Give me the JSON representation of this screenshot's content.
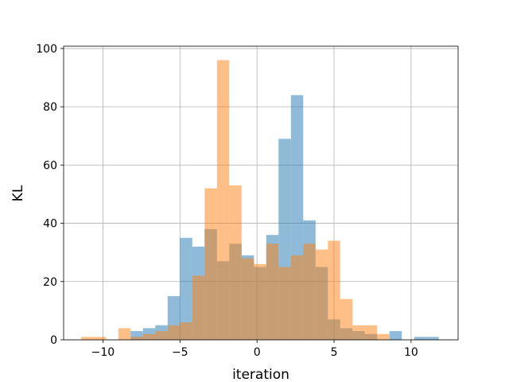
{
  "chart_data": {
    "type": "bar",
    "title": "",
    "xlabel": "iteration",
    "ylabel": "KL",
    "xlim": [
      -12.55,
      13.05
    ],
    "ylim": [
      0,
      100.8
    ],
    "xticks": [
      -10,
      -5,
      0,
      5,
      10
    ],
    "xtick_labels": [
      "−10",
      "−5",
      "0",
      "5",
      "10"
    ],
    "yticks": [
      0,
      20,
      40,
      60,
      80,
      100
    ],
    "ytick_labels": [
      "0",
      "20",
      "40",
      "60",
      "80",
      "100"
    ],
    "grid": true,
    "legend": "none",
    "bar_style": "overlapping semi-transparent histograms",
    "series": [
      {
        "color": "#1f77b4",
        "opacity": 0.5,
        "bins": [
          {
            "x0": -8.2,
            "x1": -7.4,
            "count": 3
          },
          {
            "x0": -7.4,
            "x1": -6.6,
            "count": 4
          },
          {
            "x0": -6.6,
            "x1": -5.8,
            "count": 5
          },
          {
            "x0": -5.8,
            "x1": -5.0,
            "count": 15
          },
          {
            "x0": -5.0,
            "x1": -4.2,
            "count": 35
          },
          {
            "x0": -4.2,
            "x1": -3.4,
            "count": 32
          },
          {
            "x0": -3.4,
            "x1": -2.6,
            "count": 38
          },
          {
            "x0": -2.6,
            "x1": -1.8,
            "count": 27
          },
          {
            "x0": -1.8,
            "x1": -1.0,
            "count": 33
          },
          {
            "x0": -1.0,
            "x1": -0.2,
            "count": 29
          },
          {
            "x0": -0.2,
            "x1": 0.6,
            "count": 25
          },
          {
            "x0": 0.6,
            "x1": 1.4,
            "count": 36
          },
          {
            "x0": 1.4,
            "x1": 2.2,
            "count": 69
          },
          {
            "x0": 2.2,
            "x1": 3.0,
            "count": 84
          },
          {
            "x0": 3.0,
            "x1": 3.8,
            "count": 41
          },
          {
            "x0": 3.8,
            "x1": 4.6,
            "count": 25
          },
          {
            "x0": 4.6,
            "x1": 5.4,
            "count": 7
          },
          {
            "x0": 5.4,
            "x1": 6.2,
            "count": 4
          },
          {
            "x0": 6.2,
            "x1": 7.0,
            "count": 3
          },
          {
            "x0": 7.0,
            "x1": 7.8,
            "count": 2
          },
          {
            "x0": 8.6,
            "x1": 9.4,
            "count": 3
          },
          {
            "x0": 10.2,
            "x1": 11.0,
            "count": 1
          },
          {
            "x0": 11.0,
            "x1": 11.8,
            "count": 1
          }
        ]
      },
      {
        "color": "#ff7f0e",
        "opacity": 0.5,
        "bins": [
          {
            "x0": -11.4,
            "x1": -10.6,
            "count": 1
          },
          {
            "x0": -10.6,
            "x1": -9.8,
            "count": 1
          },
          {
            "x0": -9.0,
            "x1": -8.2,
            "count": 4
          },
          {
            "x0": -8.2,
            "x1": -7.4,
            "count": 1
          },
          {
            "x0": -7.4,
            "x1": -6.6,
            "count": 2
          },
          {
            "x0": -6.6,
            "x1": -5.8,
            "count": 3
          },
          {
            "x0": -5.8,
            "x1": -5.0,
            "count": 5
          },
          {
            "x0": -5.0,
            "x1": -4.2,
            "count": 6
          },
          {
            "x0": -4.2,
            "x1": -3.4,
            "count": 22
          },
          {
            "x0": -3.4,
            "x1": -2.6,
            "count": 52
          },
          {
            "x0": -2.6,
            "x1": -1.8,
            "count": 96
          },
          {
            "x0": -1.8,
            "x1": -1.0,
            "count": 53
          },
          {
            "x0": -1.0,
            "x1": -0.2,
            "count": 28
          },
          {
            "x0": -0.2,
            "x1": 0.6,
            "count": 26
          },
          {
            "x0": 0.6,
            "x1": 1.4,
            "count": 33
          },
          {
            "x0": 1.4,
            "x1": 2.2,
            "count": 25
          },
          {
            "x0": 2.2,
            "x1": 3.0,
            "count": 29
          },
          {
            "x0": 3.0,
            "x1": 3.8,
            "count": 33
          },
          {
            "x0": 3.8,
            "x1": 4.6,
            "count": 31
          },
          {
            "x0": 4.6,
            "x1": 5.4,
            "count": 34
          },
          {
            "x0": 5.4,
            "x1": 6.2,
            "count": 14
          },
          {
            "x0": 6.2,
            "x1": 7.0,
            "count": 5
          },
          {
            "x0": 7.0,
            "x1": 7.8,
            "count": 5
          },
          {
            "x0": 7.8,
            "x1": 8.6,
            "count": 2
          }
        ]
      }
    ]
  }
}
